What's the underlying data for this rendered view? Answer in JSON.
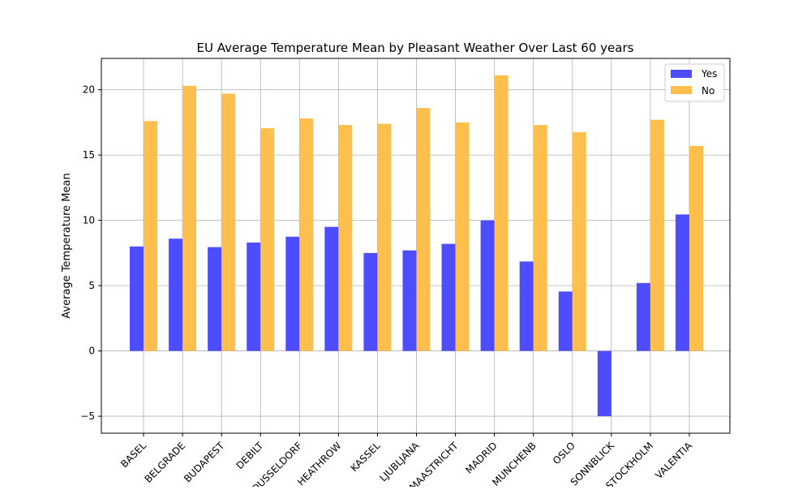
{
  "chart_data": {
    "type": "bar",
    "title": "EU Average Temperature Mean by Pleasant Weather Over Last 60 years",
    "xlabel": "",
    "ylabel": "Average Temperature Mean",
    "categories": [
      "BASEL",
      "BELGRADE",
      "BUDAPEST",
      "DEBILT",
      "DUSSELDORF",
      "HEATHROW",
      "KASSEL",
      "LJUBLJANA",
      "MAASTRICHT",
      "MADRID",
      "MUNCHENB",
      "OSLO",
      "SONNBLICK",
      "STOCKHOLM",
      "VALENTIA"
    ],
    "series": [
      {
        "name": "Yes",
        "color": "#4d4dff",
        "values": [
          8.0,
          8.6,
          7.95,
          8.3,
          8.75,
          9.5,
          7.5,
          7.7,
          8.2,
          10.0,
          6.85,
          4.55,
          -5.0,
          5.2,
          10.45
        ]
      },
      {
        "name": "No",
        "color": "#ffbf4d",
        "values": [
          17.6,
          20.3,
          19.7,
          17.05,
          17.8,
          17.3,
          17.4,
          18.6,
          17.5,
          21.1,
          17.3,
          16.75,
          null,
          17.7,
          15.7
        ]
      }
    ],
    "ylim": [
      -6.3,
      22.4
    ],
    "yticks": [
      -5,
      0,
      5,
      10,
      15,
      20
    ],
    "ytick_labels": [
      "−5",
      "0",
      "5",
      "10",
      "15",
      "20"
    ],
    "grid": true,
    "legend_position": "top-right"
  }
}
